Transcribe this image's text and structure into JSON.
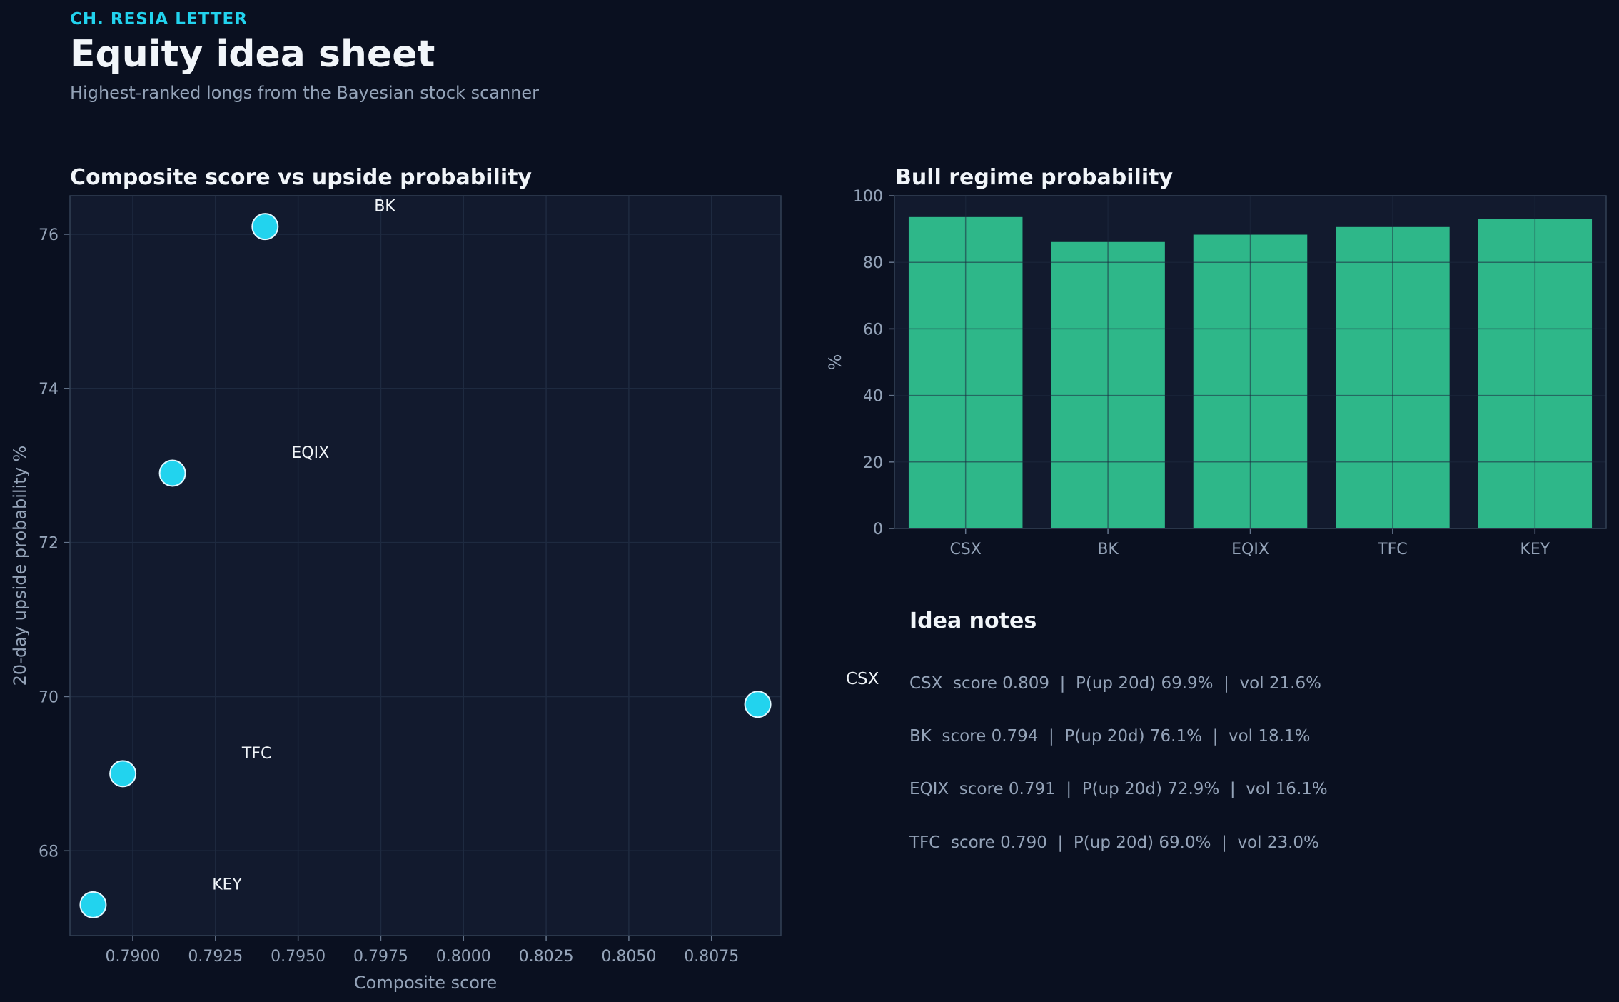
{
  "header": {
    "kicker": "CH. RESIA LETTER",
    "title": "Equity idea sheet",
    "subtitle": "Highest-ranked longs from the Bayesian stock scanner"
  },
  "colors": {
    "background": "#0a1020",
    "panel": "#121a2e",
    "accent_cyan": "#22d3ee",
    "bar_green": "#2eb789",
    "text_primary": "#f1f5f9",
    "text_muted": "#94a3b8"
  },
  "chart_data": [
    {
      "type": "scatter",
      "title": "Composite score vs upside probability",
      "xlabel": "Composite score",
      "ylabel": "20-day upside probability %",
      "xlim": [
        0.7881,
        0.8096
      ],
      "ylim": [
        66.9,
        76.5
      ],
      "xticks": [
        0.79,
        0.7925,
        0.795,
        0.7975,
        0.8,
        0.8025,
        0.805,
        0.8075
      ],
      "xtick_labels": [
        "0.7900",
        "0.7925",
        "0.7950",
        "0.7975",
        "0.8000",
        "0.8025",
        "0.8050",
        "0.8075"
      ],
      "yticks": [
        68,
        70,
        72,
        74,
        76
      ],
      "ytick_labels": [
        "68",
        "70",
        "72",
        "74",
        "76"
      ],
      "grid": true,
      "points": [
        {
          "x": 0.8089,
          "y": 69.9
        },
        {
          "x": 0.794,
          "y": 76.1
        },
        {
          "x": 0.7912,
          "y": 72.9
        },
        {
          "x": 0.7897,
          "y": 69.0
        },
        {
          "x": 0.7888,
          "y": 67.3
        }
      ],
      "annotations": [
        {
          "label": "BK",
          "x": 0.7973,
          "y": 76.3
        },
        {
          "label": "EQIX",
          "x": 0.7948,
          "y": 73.1
        },
        {
          "label": "TFC",
          "x": 0.7933,
          "y": 69.2
        },
        {
          "label": "KEY",
          "x": 0.7924,
          "y": 67.5
        }
      ]
    },
    {
      "type": "bar",
      "title": "Bull regime probability",
      "categories": [
        "CSX",
        "BK",
        "EQIX",
        "TFC",
        "KEY"
      ],
      "values": [
        93.6,
        86.1,
        88.3,
        90.6,
        93.0
      ],
      "ylabel": "%",
      "ylim": [
        0,
        100
      ],
      "yticks": [
        0,
        20,
        40,
        60,
        80,
        100
      ],
      "ytick_labels": [
        "0",
        "20",
        "40",
        "60",
        "80",
        "100"
      ],
      "grid": true
    }
  ],
  "notes": {
    "title": "Idea notes",
    "stray_label": "CSX",
    "items": [
      "CSX  score 0.809  |  P(up 20d) 69.9%  |  vol 21.6%",
      "BK  score 0.794  |  P(up 20d) 76.1%  |  vol 18.1%",
      "EQIX  score 0.791  |  P(up 20d) 72.9%  |  vol 16.1%",
      "TFC  score 0.790  |  P(up 20d) 69.0%  |  vol 23.0%"
    ]
  }
}
